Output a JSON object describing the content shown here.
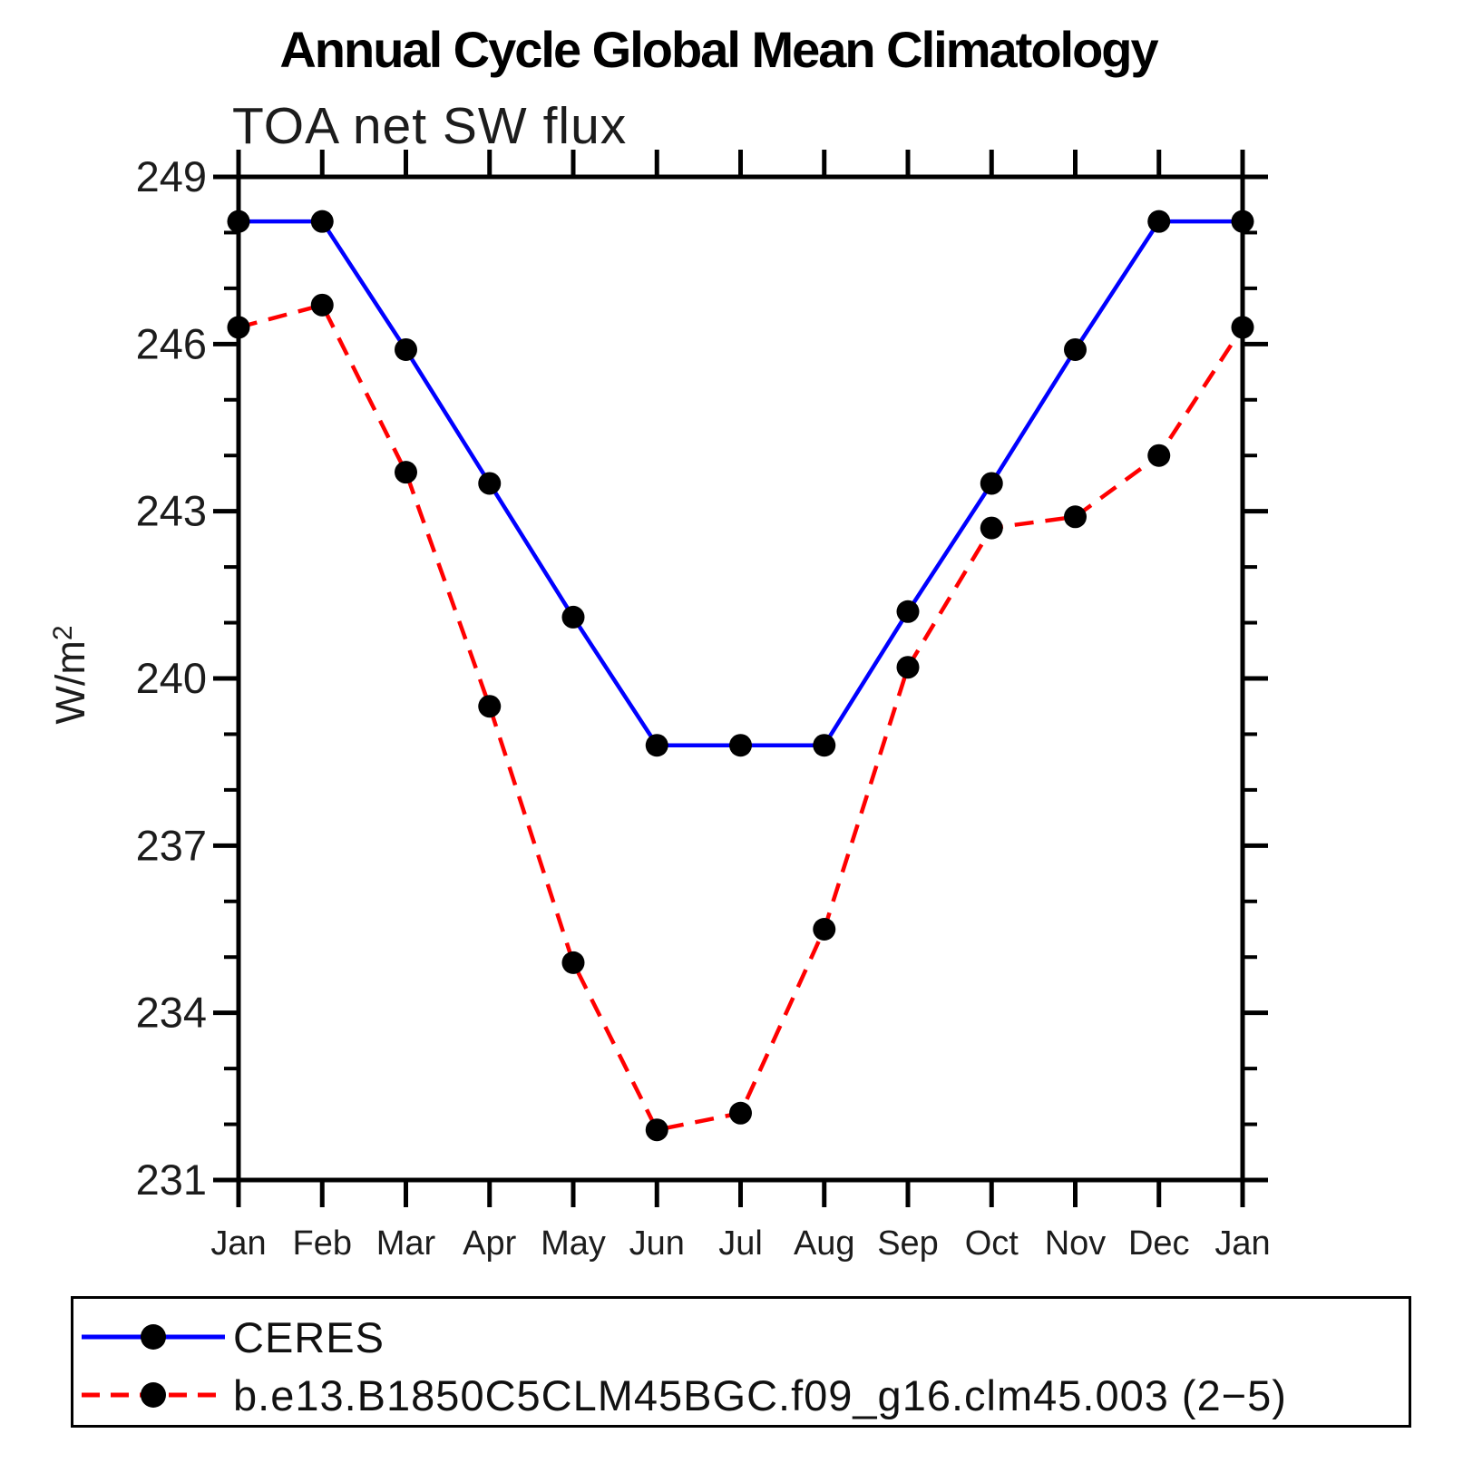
{
  "chart_data": {
    "type": "line",
    "title": "Annual Cycle Global Mean Climatology",
    "subtitle": "TOA net SW flux",
    "ylabel_base": "W/m",
    "ylabel_exponent": "2",
    "xlabel": "",
    "categories": [
      "Jan",
      "Feb",
      "Mar",
      "Apr",
      "May",
      "Jun",
      "Jul",
      "Aug",
      "Sep",
      "Oct",
      "Nov",
      "Dec",
      "Jan"
    ],
    "series": [
      {
        "name": "CERES",
        "color": "#0000ff",
        "line_style": "solid",
        "marker": "circle",
        "marker_color": "#000000",
        "values": [
          248.2,
          248.2,
          245.9,
          243.5,
          241.1,
          238.8,
          238.8,
          238.8,
          241.2,
          243.5,
          245.9,
          248.2,
          248.2
        ]
      },
      {
        "name": "b.e13.B1850C5CLM45BGC.f09_g16.clm45.003 (2−5)",
        "color": "#ff0000",
        "line_style": "dashed",
        "marker": "circle",
        "marker_color": "#000000",
        "values": [
          246.3,
          246.7,
          243.7,
          239.5,
          234.9,
          231.9,
          232.2,
          235.5,
          240.2,
          242.7,
          242.9,
          244.0,
          246.3
        ]
      }
    ],
    "ylim": [
      231,
      249
    ],
    "yticks": [
      231,
      234,
      237,
      240,
      243,
      246,
      249
    ],
    "y_minor_interval": 1,
    "grid": false,
    "legend_position": "bottom-left-box",
    "axis_color": "#000000",
    "tick_label_color": "#1c1c1c"
  }
}
